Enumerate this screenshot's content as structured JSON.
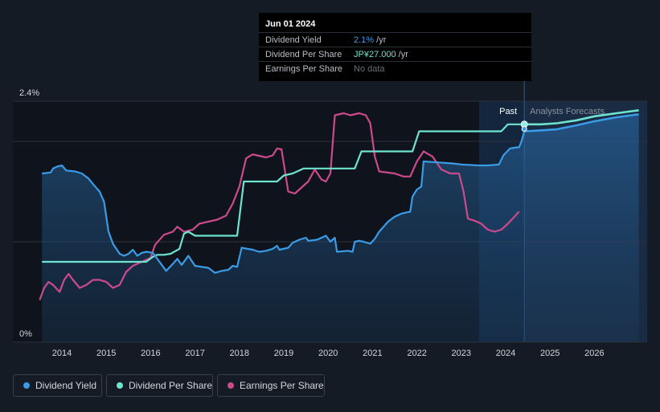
{
  "chart_data": {
    "type": "line",
    "title": "",
    "xlabel": "",
    "ylabel": "",
    "x_range": [
      2013.5,
      2027.0
    ],
    "y_axis": {
      "range": [
        0,
        2.4
      ],
      "tick_labels": [
        "2.4%",
        "0%"
      ]
    },
    "x_tick_labels": [
      "2014",
      "2015",
      "2016",
      "2017",
      "2018",
      "2019",
      "2020",
      "2021",
      "2022",
      "2023",
      "2024",
      "2025",
      "2026"
    ],
    "regions": {
      "past_label": "Past",
      "forecast_label": "Analysts Forecasts",
      "past_start_x": 2023.4,
      "cursor_x": 2024.42
    },
    "series": [
      {
        "name": "Dividend Yield",
        "unit": "%",
        "color": "#3a9be6",
        "filled": true,
        "points": [
          [
            2013.55,
            1.68
          ],
          [
            2013.75,
            1.69
          ],
          [
            2013.8,
            1.73
          ],
          [
            2013.9,
            1.75
          ],
          [
            2014.0,
            1.76
          ],
          [
            2014.1,
            1.71
          ],
          [
            2014.3,
            1.7
          ],
          [
            2014.45,
            1.68
          ],
          [
            2014.6,
            1.63
          ],
          [
            2014.75,
            1.55
          ],
          [
            2014.85,
            1.5
          ],
          [
            2014.95,
            1.4
          ],
          [
            2015.05,
            1.1
          ],
          [
            2015.15,
            0.98
          ],
          [
            2015.3,
            0.88
          ],
          [
            2015.4,
            0.86
          ],
          [
            2015.5,
            0.88
          ],
          [
            2015.6,
            0.92
          ],
          [
            2015.7,
            0.86
          ],
          [
            2015.8,
            0.89
          ],
          [
            2015.9,
            0.9
          ],
          [
            2016.05,
            0.89
          ],
          [
            2016.2,
            0.8
          ],
          [
            2016.35,
            0.71
          ],
          [
            2016.5,
            0.78
          ],
          [
            2016.6,
            0.83
          ],
          [
            2016.7,
            0.77
          ],
          [
            2016.85,
            0.86
          ],
          [
            2017.0,
            0.76
          ],
          [
            2017.15,
            0.75
          ],
          [
            2017.3,
            0.74
          ],
          [
            2017.45,
            0.69
          ],
          [
            2017.6,
            0.71
          ],
          [
            2017.75,
            0.72
          ],
          [
            2017.85,
            0.76
          ],
          [
            2017.95,
            0.75
          ],
          [
            2018.05,
            0.94
          ],
          [
            2018.3,
            0.92
          ],
          [
            2018.45,
            0.9
          ],
          [
            2018.6,
            0.91
          ],
          [
            2018.75,
            0.93
          ],
          [
            2018.85,
            0.96
          ],
          [
            2018.9,
            0.92
          ],
          [
            2019.1,
            0.94
          ],
          [
            2019.2,
            0.99
          ],
          [
            2019.35,
            1.02
          ],
          [
            2019.5,
            1.04
          ],
          [
            2019.55,
            1.01
          ],
          [
            2019.75,
            1.02
          ],
          [
            2019.85,
            1.04
          ],
          [
            2019.95,
            1.06
          ],
          [
            2020.05,
            1.0
          ],
          [
            2020.15,
            1.04
          ],
          [
            2020.2,
            0.9
          ],
          [
            2020.45,
            0.91
          ],
          [
            2020.55,
            0.9
          ],
          [
            2020.6,
            1.0
          ],
          [
            2020.7,
            1.01
          ],
          [
            2020.8,
            1.0
          ],
          [
            2020.95,
            0.98
          ],
          [
            2021.05,
            1.03
          ],
          [
            2021.15,
            1.1
          ],
          [
            2021.35,
            1.2
          ],
          [
            2021.5,
            1.25
          ],
          [
            2021.65,
            1.28
          ],
          [
            2021.85,
            1.3
          ],
          [
            2021.9,
            1.45
          ],
          [
            2022.0,
            1.52
          ],
          [
            2022.1,
            1.55
          ],
          [
            2022.15,
            1.8
          ],
          [
            2022.5,
            1.79
          ],
          [
            2022.8,
            1.78
          ],
          [
            2023.0,
            1.77
          ],
          [
            2023.4,
            1.76
          ],
          [
            2023.6,
            1.76
          ],
          [
            2023.85,
            1.77
          ],
          [
            2023.95,
            1.86
          ],
          [
            2024.1,
            1.93
          ],
          [
            2024.25,
            1.94
          ],
          [
            2024.3,
            1.94
          ],
          [
            2024.35,
            1.99
          ],
          [
            2024.42,
            2.1
          ]
        ],
        "forecast_points": [
          [
            2024.42,
            2.1
          ],
          [
            2024.8,
            2.11
          ],
          [
            2025.15,
            2.12
          ],
          [
            2025.6,
            2.16
          ],
          [
            2026.0,
            2.2
          ],
          [
            2026.5,
            2.24
          ],
          [
            2027.0,
            2.27
          ]
        ]
      },
      {
        "name": "Dividend Per Share",
        "unit": "JP¥",
        "color": "#6ee3d0",
        "filled": false,
        "points": [
          [
            2013.55,
            0.8
          ],
          [
            2015.9,
            0.8
          ],
          [
            2016.05,
            0.85
          ],
          [
            2016.15,
            0.87
          ],
          [
            2016.3,
            0.87
          ],
          [
            2016.45,
            0.88
          ],
          [
            2016.65,
            0.93
          ],
          [
            2016.75,
            1.08
          ],
          [
            2016.85,
            1.1
          ],
          [
            2017.0,
            1.06
          ],
          [
            2017.95,
            1.06
          ],
          [
            2018.1,
            1.6
          ],
          [
            2018.85,
            1.6
          ],
          [
            2019.0,
            1.66
          ],
          [
            2019.2,
            1.68
          ],
          [
            2019.45,
            1.73
          ],
          [
            2020.3,
            1.73
          ],
          [
            2020.6,
            1.73
          ],
          [
            2020.75,
            1.9
          ],
          [
            2021.9,
            1.9
          ],
          [
            2022.05,
            2.1
          ],
          [
            2023.1,
            2.1
          ],
          [
            2023.9,
            2.1
          ],
          [
            2024.05,
            2.17
          ],
          [
            2024.42,
            2.17
          ]
        ],
        "forecast_points": [
          [
            2024.42,
            2.17
          ],
          [
            2024.8,
            2.17
          ],
          [
            2025.15,
            2.18
          ],
          [
            2025.6,
            2.21
          ],
          [
            2026.0,
            2.25
          ],
          [
            2026.5,
            2.28
          ],
          [
            2027.0,
            2.31
          ]
        ]
      },
      {
        "name": "Earnings Per Share",
        "unit": "JP¥",
        "color": "#cc4a8c",
        "filled": false,
        "points": [
          [
            2013.5,
            0.42
          ],
          [
            2013.6,
            0.54
          ],
          [
            2013.7,
            0.6
          ],
          [
            2013.8,
            0.57
          ],
          [
            2013.95,
            0.5
          ],
          [
            2014.05,
            0.62
          ],
          [
            2014.15,
            0.68
          ],
          [
            2014.25,
            0.62
          ],
          [
            2014.4,
            0.54
          ],
          [
            2014.55,
            0.57
          ],
          [
            2014.7,
            0.62
          ],
          [
            2014.85,
            0.62
          ],
          [
            2015.0,
            0.6
          ],
          [
            2015.15,
            0.54
          ],
          [
            2015.3,
            0.57
          ],
          [
            2015.45,
            0.7
          ],
          [
            2015.6,
            0.76
          ],
          [
            2015.8,
            0.8
          ],
          [
            2016.0,
            0.84
          ],
          [
            2016.1,
            0.97
          ],
          [
            2016.3,
            1.07
          ],
          [
            2016.5,
            1.1
          ],
          [
            2016.6,
            1.15
          ],
          [
            2016.75,
            1.1
          ],
          [
            2016.95,
            1.12
          ],
          [
            2017.1,
            1.18
          ],
          [
            2017.3,
            1.2
          ],
          [
            2017.5,
            1.22
          ],
          [
            2017.7,
            1.26
          ],
          [
            2017.85,
            1.38
          ],
          [
            2018.0,
            1.55
          ],
          [
            2018.15,
            1.83
          ],
          [
            2018.3,
            1.87
          ],
          [
            2018.4,
            1.86
          ],
          [
            2018.6,
            1.84
          ],
          [
            2018.75,
            1.86
          ],
          [
            2018.85,
            1.93
          ],
          [
            2018.95,
            1.92
          ],
          [
            2019.1,
            1.5
          ],
          [
            2019.25,
            1.48
          ],
          [
            2019.4,
            1.54
          ],
          [
            2019.55,
            1.6
          ],
          [
            2019.7,
            1.72
          ],
          [
            2019.85,
            1.62
          ],
          [
            2019.95,
            1.6
          ],
          [
            2020.05,
            1.68
          ],
          [
            2020.15,
            2.26
          ],
          [
            2020.35,
            2.28
          ],
          [
            2020.5,
            2.26
          ],
          [
            2020.7,
            2.28
          ],
          [
            2020.85,
            2.26
          ],
          [
            2020.95,
            2.18
          ],
          [
            2021.05,
            1.85
          ],
          [
            2021.15,
            1.7
          ],
          [
            2021.5,
            1.68
          ],
          [
            2021.7,
            1.65
          ],
          [
            2021.85,
            1.65
          ],
          [
            2022.0,
            1.8
          ],
          [
            2022.15,
            1.9
          ],
          [
            2022.35,
            1.85
          ],
          [
            2022.55,
            1.72
          ],
          [
            2022.75,
            1.68
          ],
          [
            2022.95,
            1.68
          ],
          [
            2023.05,
            1.5
          ],
          [
            2023.15,
            1.23
          ],
          [
            2023.3,
            1.21
          ],
          [
            2023.45,
            1.18
          ],
          [
            2023.6,
            1.12
          ],
          [
            2023.75,
            1.1
          ],
          [
            2023.9,
            1.12
          ],
          [
            2024.05,
            1.18
          ],
          [
            2024.2,
            1.25
          ],
          [
            2024.3,
            1.3
          ]
        ]
      }
    ]
  },
  "tooltip": {
    "date": "Jun 01 2024",
    "rows": [
      {
        "label": "Dividend Yield",
        "value": "2.1%",
        "unit": " /yr"
      },
      {
        "label": "Dividend Per Share",
        "value": "JP¥27.000",
        "unit": " /yr"
      },
      {
        "label": "Earnings Per Share",
        "value": "No data",
        "unit": ""
      }
    ]
  },
  "legend": {
    "items": [
      {
        "label": "Dividend Yield",
        "color": "#3a9be6"
      },
      {
        "label": "Dividend Per Share",
        "color": "#6ee3d0"
      },
      {
        "label": "Earnings Per Share",
        "color": "#cc4a8c"
      }
    ]
  },
  "colors": {
    "background": "#151b24",
    "plot_background": "#0f141c",
    "forecast_band": "#1a2c44",
    "grid": "#2c323b",
    "axis_text": "#d3d7dd",
    "muted_text": "#8b919a"
  }
}
